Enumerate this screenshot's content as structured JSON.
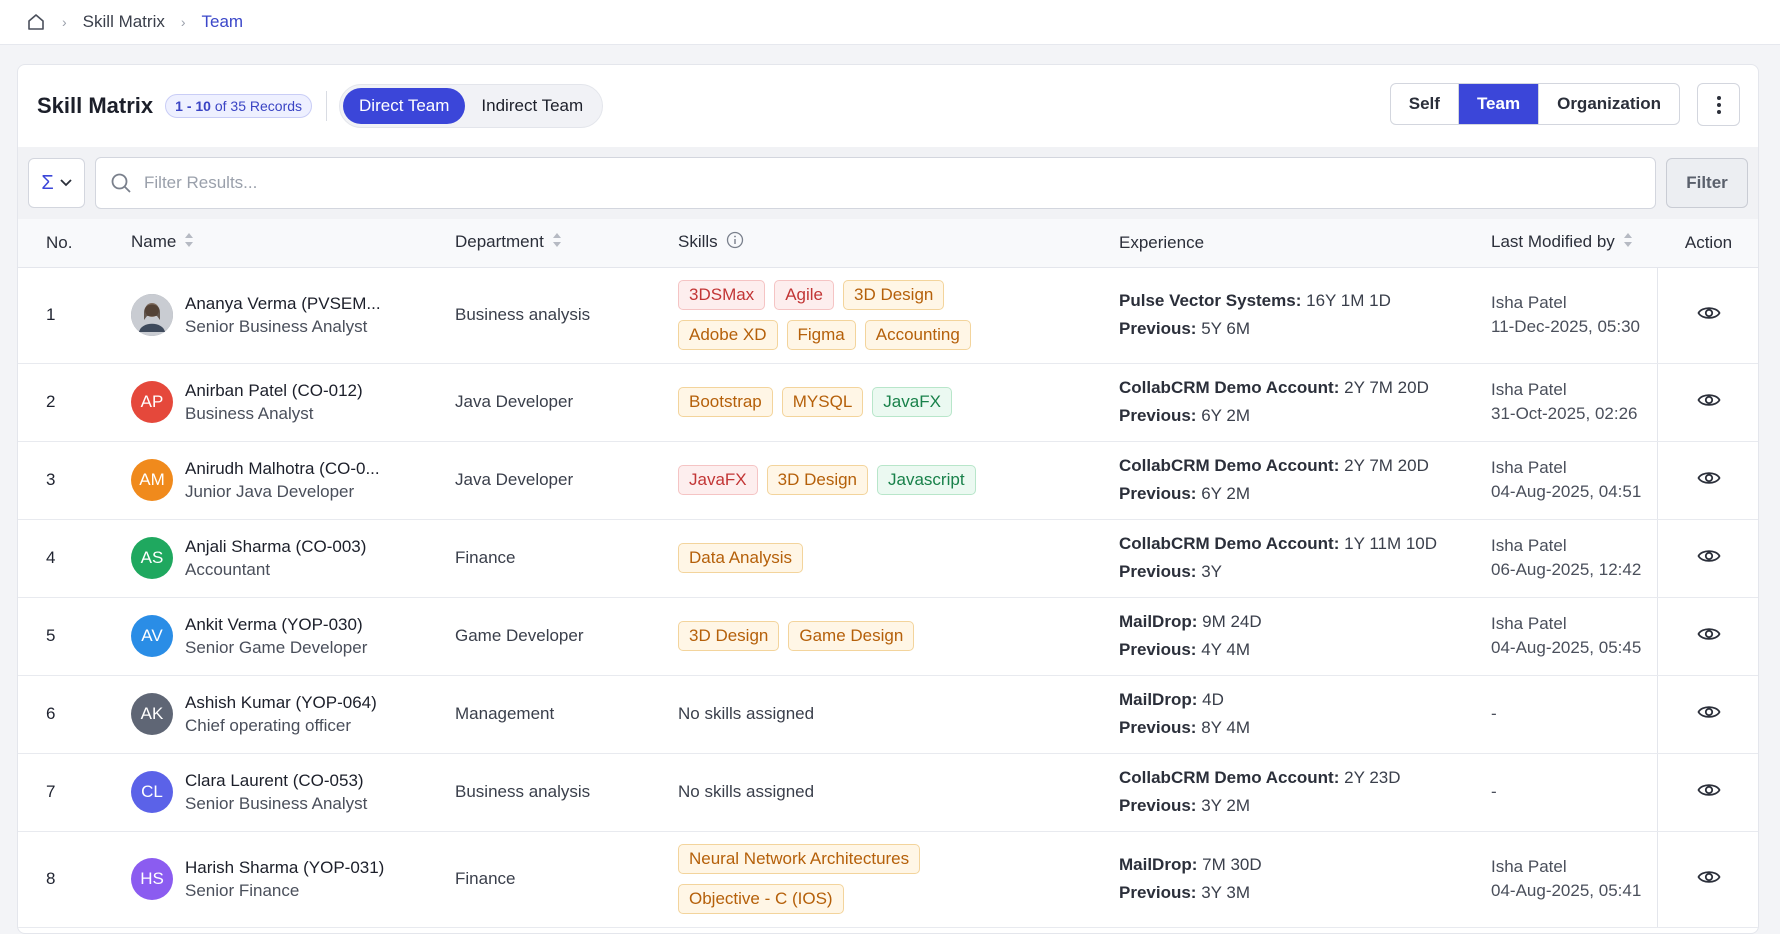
{
  "breadcrumb": {
    "items": [
      "Skill Matrix",
      "Team"
    ]
  },
  "header": {
    "title": "Skill Matrix",
    "records_range": "1 - 10",
    "records_suffix": "of 35 Records",
    "team_tabs": [
      "Direct Team",
      "Indirect Team"
    ],
    "view_tabs": [
      "Self",
      "Team",
      "Organization"
    ]
  },
  "filter": {
    "placeholder": "Filter Results...",
    "button": "Filter",
    "sigma": "Σ"
  },
  "columns": {
    "no": "No.",
    "name": "Name",
    "department": "Department",
    "skills": "Skills",
    "experience": "Experience",
    "modified": "Last Modified by",
    "action": "Action"
  },
  "colors": {
    "accent": "#3b46d9",
    "red_tag": "#c23535",
    "orange_tag": "#b5600a",
    "green_tag": "#18814a"
  },
  "rows": [
    {
      "no": "1",
      "initials": "",
      "avatar_color": "#8a8f99",
      "photo": true,
      "name": "Ananya Verma (PVSEM...",
      "role": "Senior Business Analyst",
      "department": "Business analysis",
      "skills": [
        {
          "label": "3DSMax",
          "color": "red"
        },
        {
          "label": "Agile",
          "color": "red"
        },
        {
          "label": "3D Design",
          "color": "orange"
        },
        {
          "label": "Adobe XD",
          "color": "orange"
        },
        {
          "label": "Figma",
          "color": "orange"
        },
        {
          "label": "Accounting",
          "color": "orange"
        }
      ],
      "exp_company": "Pulse Vector Systems:",
      "exp_value": "16Y 1M 1D",
      "prev_label": "Previous:",
      "prev_value": "5Y 6M",
      "modified_by": "Isha Patel",
      "modified_at": "11-Dec-2025, 05:30"
    },
    {
      "no": "2",
      "initials": "AP",
      "avatar_color": "#e5483b",
      "name": "Anirban Patel (CO-012)",
      "role": "Business Analyst",
      "department": "Java Developer",
      "skills": [
        {
          "label": "Bootstrap",
          "color": "orange"
        },
        {
          "label": "MYSQL",
          "color": "orange"
        },
        {
          "label": "JavaFX",
          "color": "green"
        }
      ],
      "exp_company": "CollabCRM Demo Account:",
      "exp_value": "2Y 7M 20D",
      "prev_label": "Previous:",
      "prev_value": "6Y 2M",
      "modified_by": "Isha Patel",
      "modified_at": "31-Oct-2025, 02:26"
    },
    {
      "no": "3",
      "initials": "AM",
      "avatar_color": "#f08a1c",
      "name": "Anirudh Malhotra (CO-0...",
      "role": "Junior Java Developer",
      "department": "Java Developer",
      "skills": [
        {
          "label": "JavaFX",
          "color": "red"
        },
        {
          "label": "3D Design",
          "color": "orange"
        },
        {
          "label": "Javascript",
          "color": "green"
        }
      ],
      "exp_company": "CollabCRM Demo Account:",
      "exp_value": "2Y 7M 20D",
      "prev_label": "Previous:",
      "prev_value": "6Y 2M",
      "modified_by": "Isha Patel",
      "modified_at": "04-Aug-2025, 04:51"
    },
    {
      "no": "4",
      "initials": "AS",
      "avatar_color": "#1fa85f",
      "name": "Anjali Sharma (CO-003)",
      "role": "Accountant",
      "department": "Finance",
      "skills": [
        {
          "label": "Data Analysis",
          "color": "orange"
        }
      ],
      "exp_company": "CollabCRM Demo Account:",
      "exp_value": "1Y 11M 10D",
      "prev_label": "Previous:",
      "prev_value": "3Y",
      "modified_by": "Isha Patel",
      "modified_at": "06-Aug-2025, 12:42"
    },
    {
      "no": "5",
      "initials": "AV",
      "avatar_color": "#2a8de6",
      "name": "Ankit Verma (YOP-030)",
      "role": "Senior Game Developer",
      "department": "Game Developer",
      "skills": [
        {
          "label": "3D Design",
          "color": "orange"
        },
        {
          "label": "Game Design",
          "color": "orange"
        }
      ],
      "exp_company": "MailDrop:",
      "exp_value": "9M 24D",
      "prev_label": "Previous:",
      "prev_value": "4Y 4M",
      "modified_by": "Isha Patel",
      "modified_at": "04-Aug-2025, 05:45"
    },
    {
      "no": "6",
      "initials": "AK",
      "avatar_color": "#5f6675",
      "name": "Ashish Kumar (YOP-064)",
      "role": "Chief operating officer",
      "department": "Management",
      "skills": [],
      "no_skills": "No skills assigned",
      "exp_company": "MailDrop:",
      "exp_value": "4D",
      "prev_label": "Previous:",
      "prev_value": "8Y 4M",
      "modified_by": "-",
      "modified_at": ""
    },
    {
      "no": "7",
      "initials": "CL",
      "avatar_color": "#5b62e8",
      "name": "Clara Laurent (CO-053)",
      "role": "Senior Business Analyst",
      "department": "Business analysis",
      "skills": [],
      "no_skills": "No skills assigned",
      "exp_company": "CollabCRM Demo Account:",
      "exp_value": "2Y 23D",
      "prev_label": "Previous:",
      "prev_value": "3Y 2M",
      "modified_by": "-",
      "modified_at": ""
    },
    {
      "no": "8",
      "initials": "HS",
      "avatar_color": "#8b5cf0",
      "name": "Harish Sharma (YOP-031)",
      "role": "Senior Finance",
      "department": "Finance",
      "skills": [
        {
          "label": "Neural Network Architectures",
          "color": "orange"
        },
        {
          "label": "Objective - C (IOS)",
          "color": "orange"
        }
      ],
      "exp_company": "MailDrop:",
      "exp_value": "7M 30D",
      "prev_label": "Previous:",
      "prev_value": "3Y 3M",
      "modified_by": "Isha Patel",
      "modified_at": "04-Aug-2025, 05:41"
    }
  ]
}
